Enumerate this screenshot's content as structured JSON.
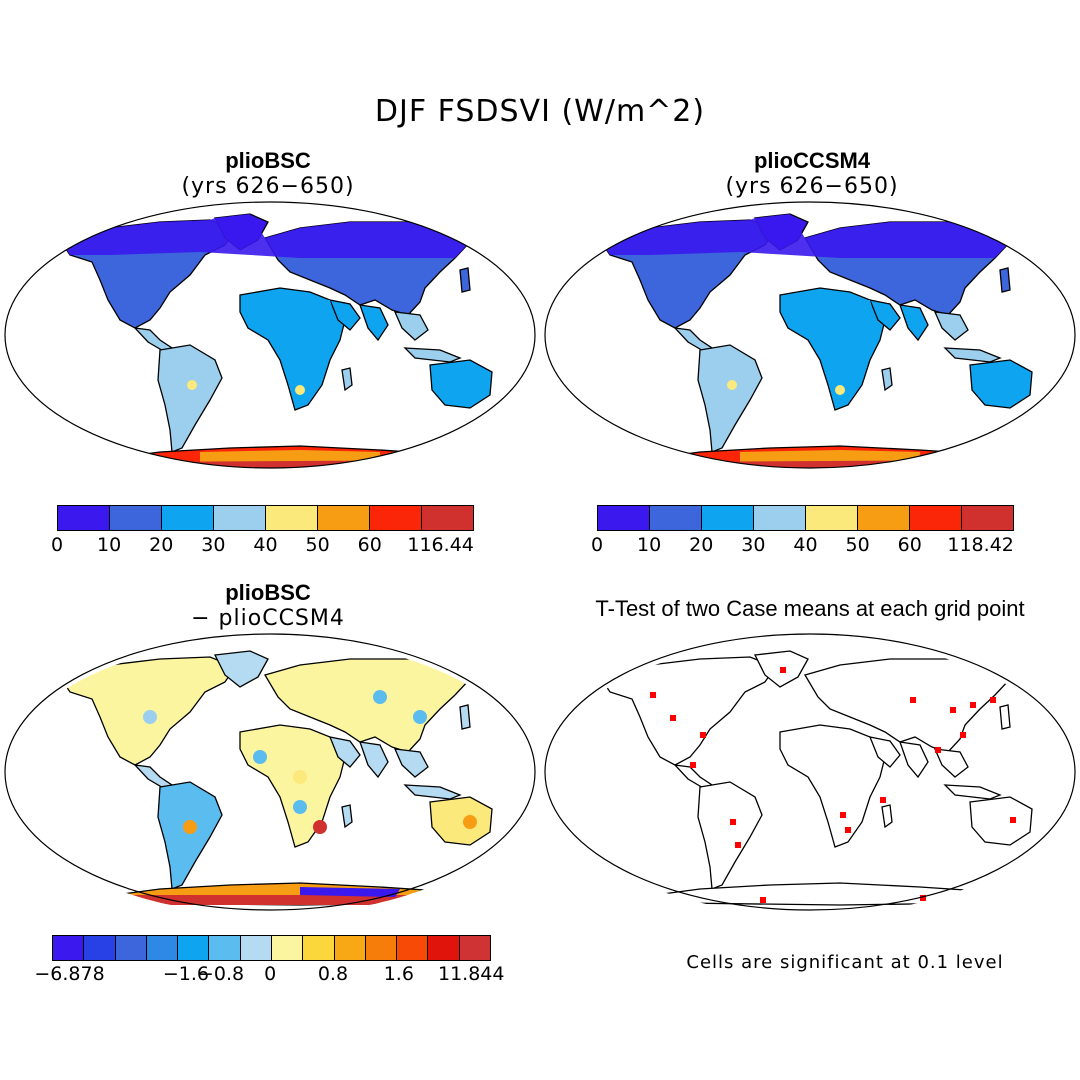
{
  "title": "DJF FSDSVI (W/m^2)",
  "panels": {
    "top_left": {
      "case": "plioBSC",
      "subtitle": "(yrs 626−650)"
    },
    "top_right": {
      "case": "plioCCSM4",
      "subtitle": "(yrs 626−650)"
    },
    "bottom_left": {
      "case": "plioBSC",
      "subtitle": "− plioCCSM4"
    },
    "bottom_right": {
      "title": "T-Test of two Case means at each grid point",
      "note": "Cells are significant at 0.1 level"
    }
  },
  "colorbars": {
    "abs_left": {
      "colors": [
        "#3a18ee",
        "#3d65dc",
        "#0fa4f0",
        "#9ccfee",
        "#fbe97c",
        "#f79d14",
        "#fb2508",
        "#d0302e"
      ],
      "labels": [
        "0",
        "10",
        "20",
        "30",
        "40",
        "50",
        "60",
        "116.44"
      ]
    },
    "abs_right": {
      "colors": [
        "#3a18ee",
        "#3d65dc",
        "#0fa4f0",
        "#9ccfee",
        "#fbe97c",
        "#f79d14",
        "#fb2508",
        "#d0302e"
      ],
      "labels": [
        "0",
        "10",
        "20",
        "30",
        "40",
        "50",
        "60",
        "118.42"
      ]
    },
    "diff": {
      "colors": [
        "#3a18ee",
        "#2741e6",
        "#3d65dc",
        "#2d88e6",
        "#0fa4f0",
        "#5bbcf0",
        "#b4dbf1",
        "#fbf5a0",
        "#fbd73b",
        "#f7a814",
        "#f77d0a",
        "#f84a07",
        "#e0140a",
        "#cf3333"
      ],
      "labels": [
        "−6.878",
        "−1.6",
        "−0.8",
        "0",
        "0.8",
        "1.6",
        "11.844"
      ]
    }
  },
  "map_colors": {
    "cold": "#3a18ee",
    "cool": "#3d65dc",
    "mid": "#0fa4f0",
    "light": "#9ccfee",
    "warm": "#fbe97c",
    "orange": "#f79d14",
    "red": "#fb2508",
    "darkred": "#d0302e",
    "sig": "#ff0000"
  }
}
